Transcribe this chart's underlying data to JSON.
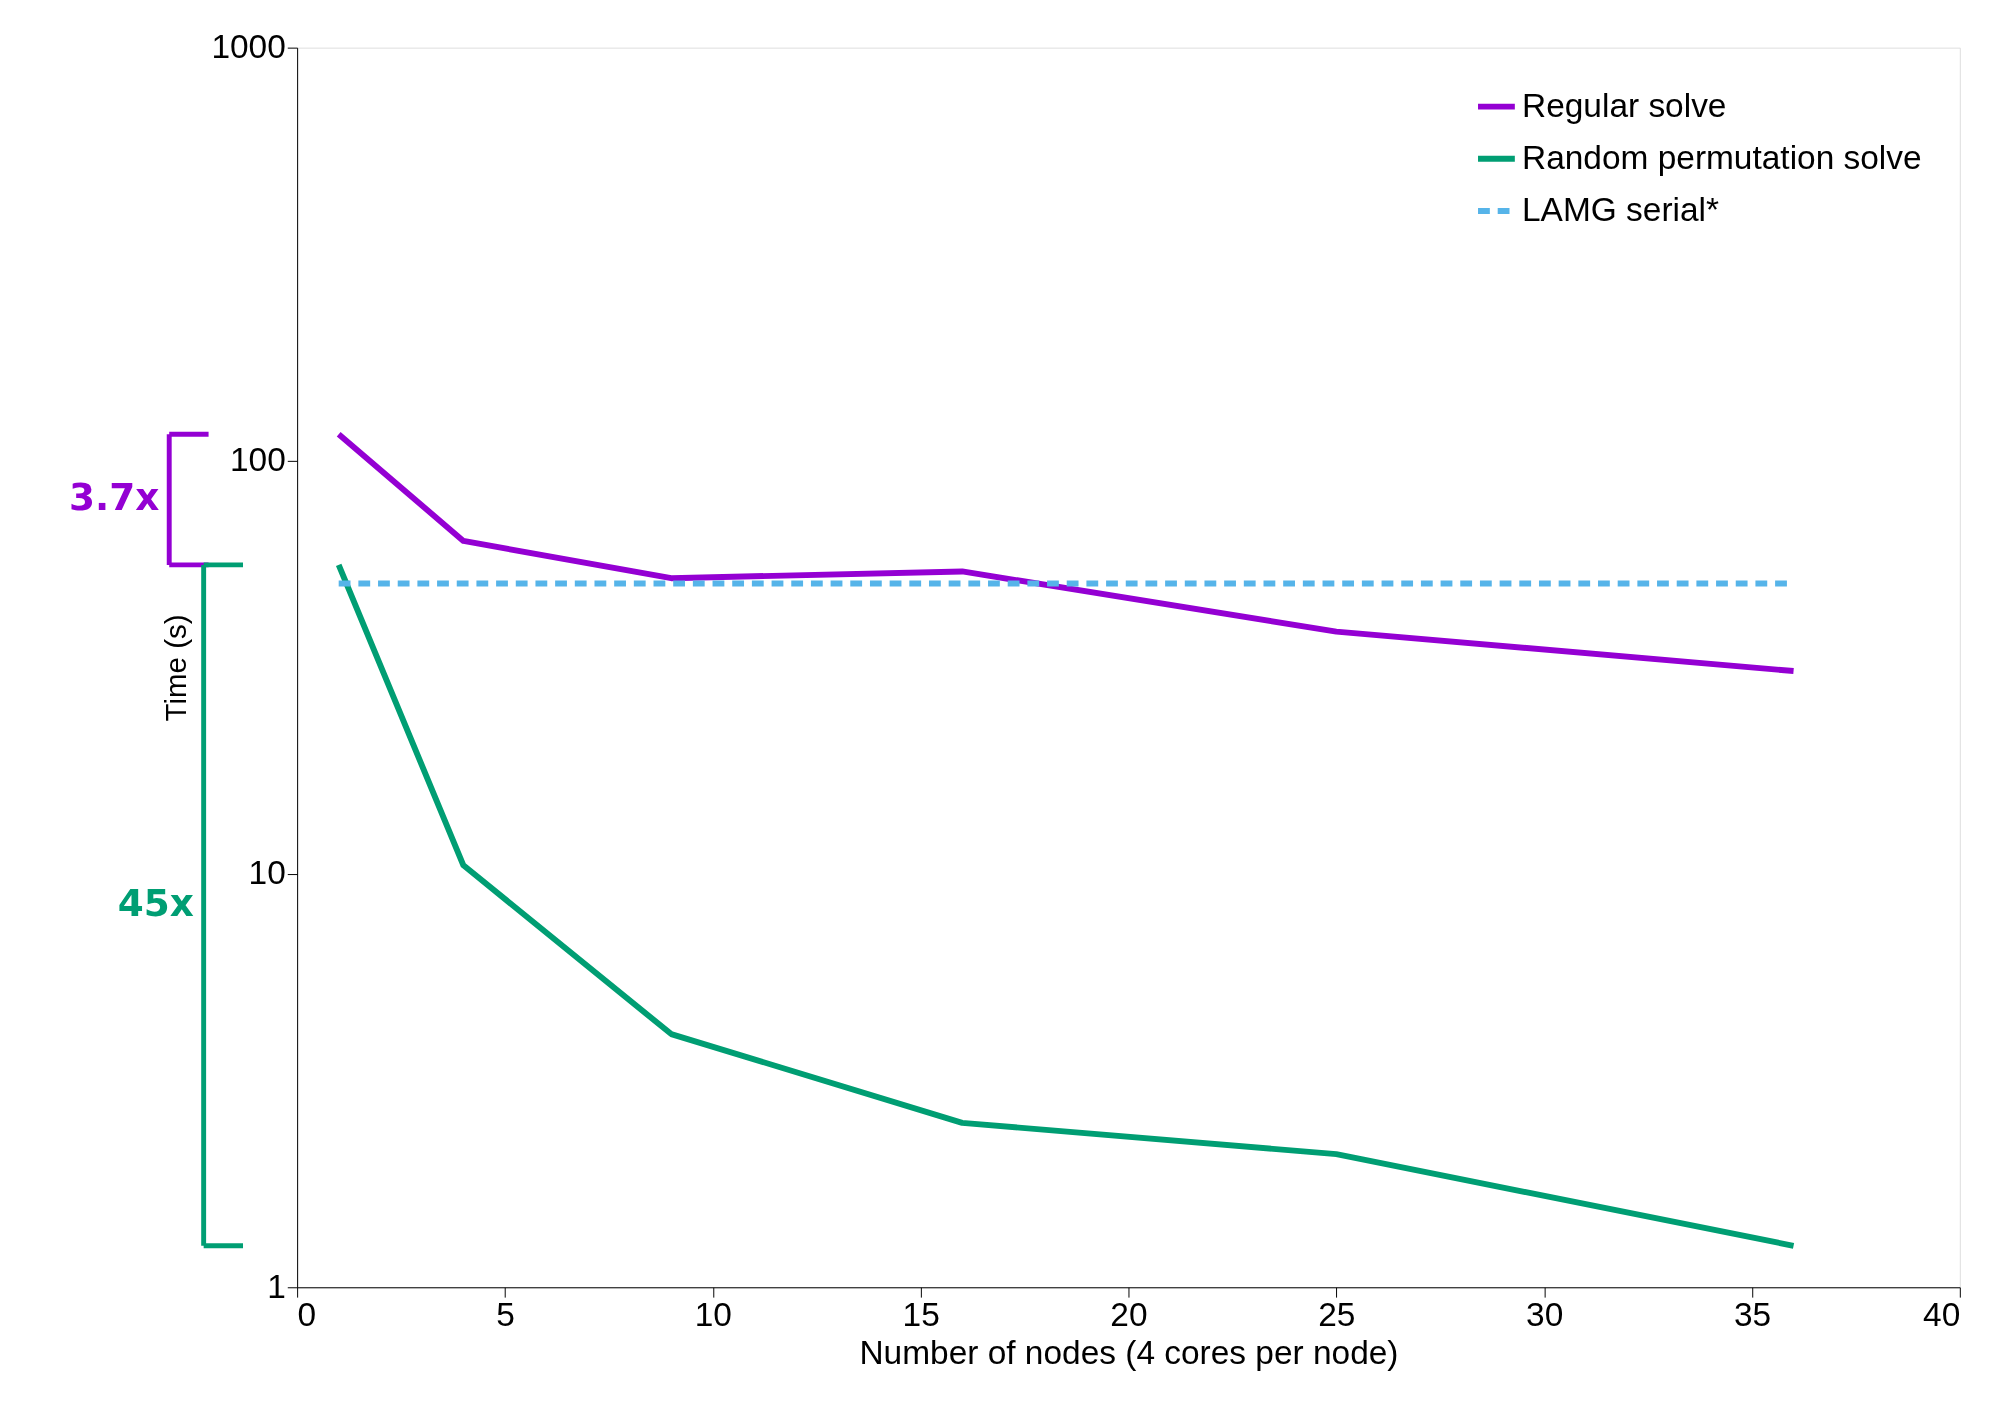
{
  "chart_data": {
    "type": "line",
    "xlabel": "Number of nodes (4 cores per node)",
    "ylabel": "Time (s)",
    "x": [
      1,
      4,
      9,
      16,
      25,
      36
    ],
    "series": [
      {
        "name": "Regular solve",
        "color": "#9400d3",
        "values": [
          116,
          64,
          52,
          54,
          38.6,
          31
        ]
      },
      {
        "name": "Random permutation solve",
        "color": "#009e73",
        "values": [
          56,
          10.5,
          4.1,
          2.5,
          2.1,
          1.26
        ]
      },
      {
        "name": "LAMG serial*",
        "color": "#56b4e9",
        "line_style": "dashed",
        "x": [
          1,
          36
        ],
        "values": [
          50.5,
          50.5
        ]
      }
    ],
    "annotations": [
      "3.7x",
      "45x"
    ],
    "log": "y",
    "xlim": [
      0,
      40
    ],
    "xticks": [
      0,
      5,
      10,
      15,
      20,
      25,
      30,
      35,
      40
    ],
    "ylim": [
      1,
      1000
    ],
    "yticks": [
      1,
      10,
      100,
      1000
    ],
    "grid": false,
    "legend": "top right",
    "line_style": "solid",
    "marker": "none"
  }
}
